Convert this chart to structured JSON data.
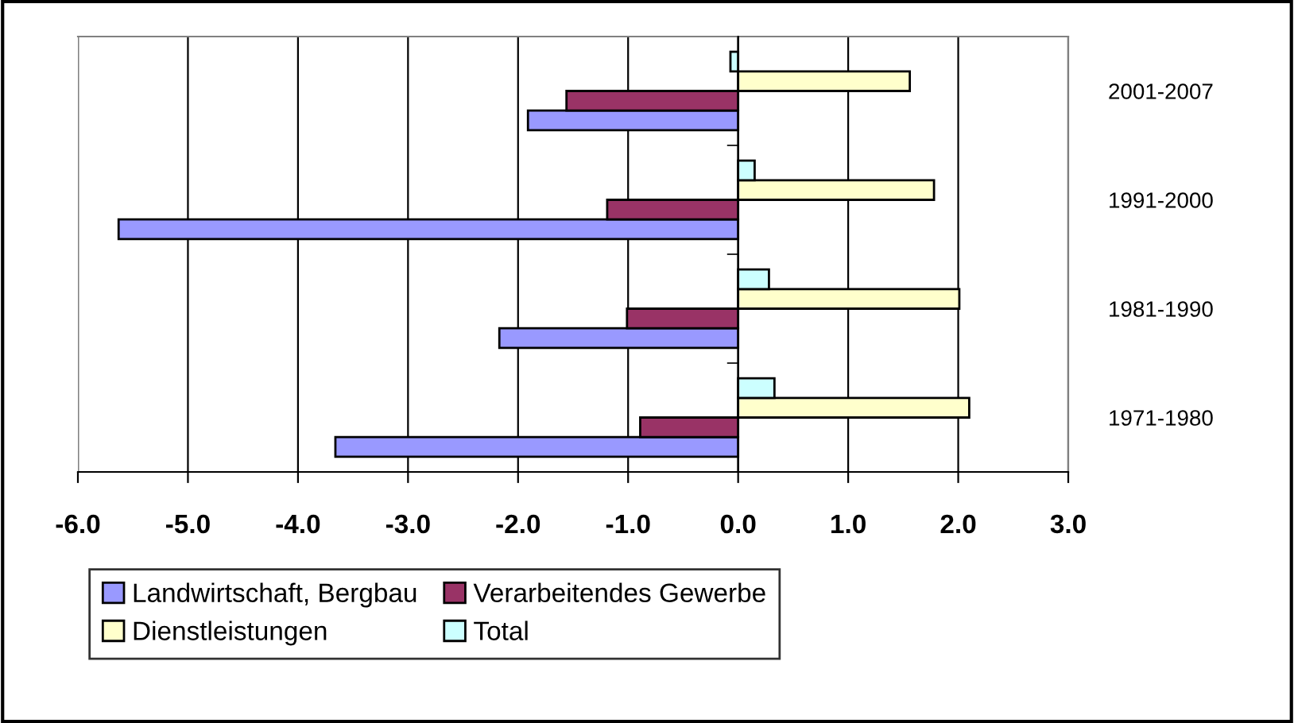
{
  "chart_data": {
    "type": "bar",
    "orientation": "horizontal",
    "categories": [
      "2001-2007",
      "1991-2000",
      "1981-1990",
      "1971-1980"
    ],
    "series": [
      {
        "name": "Landwirtschaft, Bergbau",
        "color": "#9999ff",
        "values": [
          -1.91,
          -5.63,
          -2.17,
          -3.66
        ]
      },
      {
        "name": "Verarbeitendes Gewerbe",
        "color": "#993366",
        "values": [
          -1.56,
          -1.19,
          -1.01,
          -0.89
        ]
      },
      {
        "name": "Dienstleistungen",
        "color": "#ffffcc",
        "values": [
          1.56,
          1.78,
          2.01,
          2.1
        ]
      },
      {
        "name": "Total",
        "color": "#ccffff",
        "values": [
          -0.07,
          0.15,
          0.28,
          0.33
        ]
      }
    ],
    "xlim": [
      -6,
      3
    ],
    "xticks": [
      {
        "value": -6,
        "label": "-6.0"
      },
      {
        "value": -5,
        "label": "-5.0"
      },
      {
        "value": -4,
        "label": "-4.0"
      },
      {
        "value": -3,
        "label": "-3.0"
      },
      {
        "value": -2,
        "label": "-2.0"
      },
      {
        "value": -1,
        "label": "-1.0"
      },
      {
        "value": 0,
        "label": "0.0"
      },
      {
        "value": 1,
        "label": "1.0"
      },
      {
        "value": 2,
        "label": "2.0"
      },
      {
        "value": 3,
        "label": "3.0"
      }
    ],
    "grid": "x",
    "legend": "bottom"
  }
}
